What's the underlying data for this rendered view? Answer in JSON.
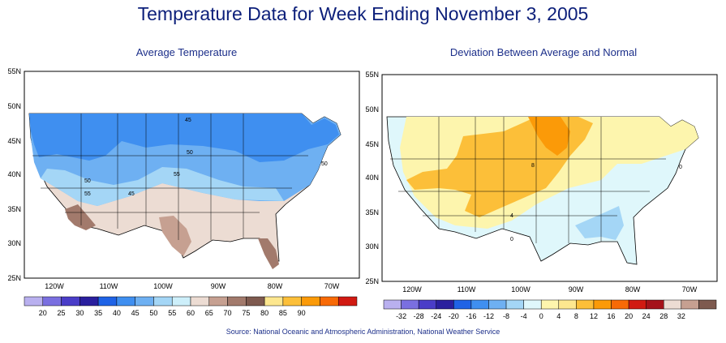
{
  "title": "Temperature Data for Week Ending November 3, 2005",
  "source": "Source:  National Oceanic and Atmospheric Administration, National Weather Service",
  "panels": [
    {
      "subtitle": "Average Temperature",
      "lat_labels": [
        "55N",
        "50N",
        "45N",
        "40N",
        "35N",
        "30N",
        "25N"
      ],
      "lon_labels": [
        "120W",
        "110W",
        "100W",
        "90W",
        "80W",
        "70W"
      ],
      "contour_labels": [
        "45",
        "50",
        "50",
        "55",
        "55",
        "45",
        "50"
      ],
      "legend": {
        "values": [
          "20",
          "25",
          "30",
          "35",
          "40",
          "45",
          "50",
          "55",
          "60",
          "65",
          "70",
          "75",
          "80",
          "85",
          "90"
        ],
        "colors": [
          "#b9b0ef",
          "#7a6fe0",
          "#4a3dc8",
          "#2a1f9e",
          "#1f63e6",
          "#3f8ff0",
          "#6eb0f2",
          "#a4d6f6",
          "#cdeffa",
          "#ecdcd3",
          "#c6a091",
          "#a27a6c",
          "#7e5a4f",
          "#fde78f",
          "#fcbf39",
          "#fb9a08",
          "#f86a06",
          "#d11a12"
        ]
      }
    },
    {
      "subtitle": "Deviation Between Average and Normal",
      "lat_labels": [
        "55N",
        "50N",
        "45N",
        "40N",
        "35N",
        "30N",
        "25N"
      ],
      "lon_labels": [
        "120W",
        "110W",
        "100W",
        "90W",
        "80W",
        "70W"
      ],
      "contour_labels": [
        "8",
        "4",
        "0",
        "0"
      ],
      "legend": {
        "values": [
          "-32",
          "-28",
          "-24",
          "-20",
          "-16",
          "-12",
          "-8",
          "-4",
          "0",
          "4",
          "8",
          "12",
          "16",
          "20",
          "24",
          "28",
          "32"
        ],
        "colors": [
          "#b9b0ef",
          "#7a6fe0",
          "#4a3dc8",
          "#2a1f9e",
          "#1f63e6",
          "#3f8ff0",
          "#6eb0f2",
          "#a4d6f6",
          "#dff7fb",
          "#fdf5ad",
          "#fde78f",
          "#fcbf39",
          "#fb9a08",
          "#f86a06",
          "#d11a12",
          "#a5121a",
          "#ecdcd3",
          "#c6a091",
          "#7e5a4f"
        ]
      }
    }
  ]
}
